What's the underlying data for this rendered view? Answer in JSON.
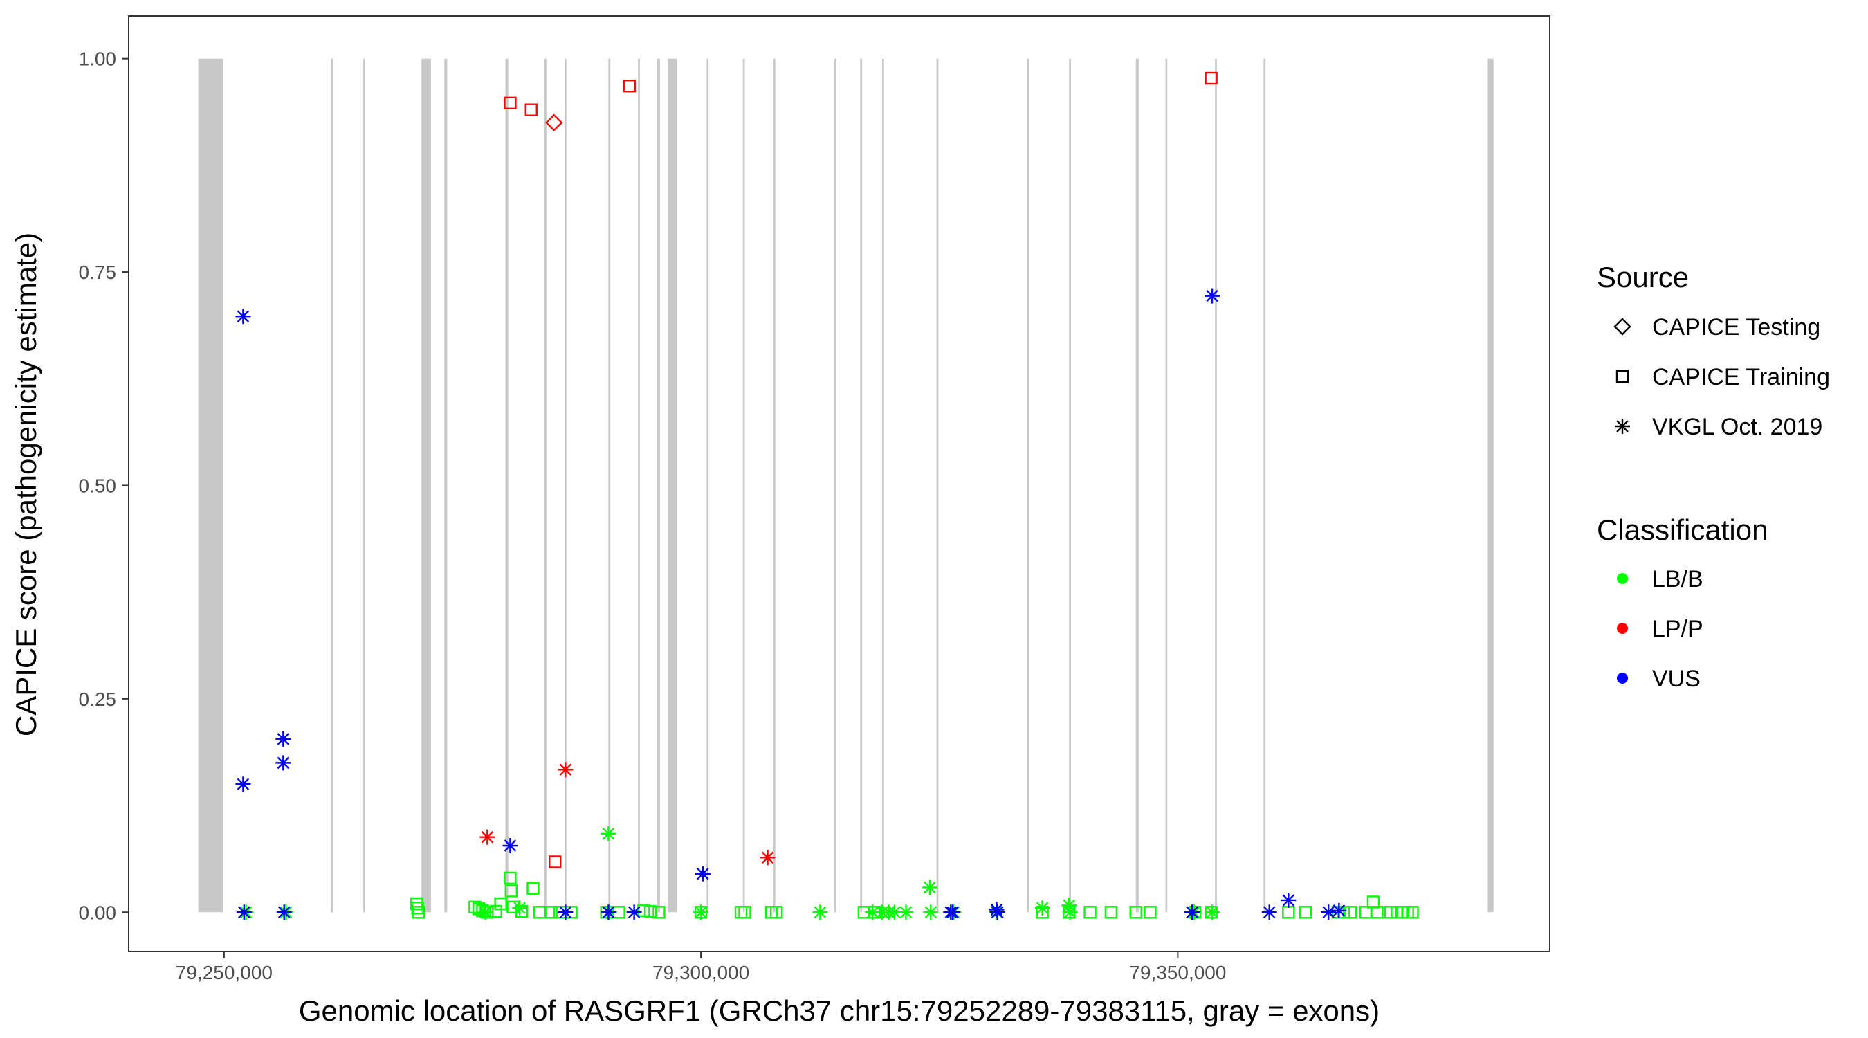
{
  "chart_data": {
    "type": "scatter",
    "title": "",
    "xlabel": "Genomic location of RASGRF1 (GRCh37 chr15:79252289-79383115, gray = exons)",
    "ylabel": "CAPICE score (pathogenicity estimate)",
    "xlim": [
      79240000,
      79389000
    ],
    "ylim": [
      -0.046,
      1.05
    ],
    "x_ticks": [
      79250000,
      79300000,
      79350000
    ],
    "x_tick_labels": [
      "79,250,000",
      "79,300,000",
      "79,350,000"
    ],
    "y_ticks": [
      0.0,
      0.25,
      0.5,
      0.75,
      1.0
    ],
    "y_tick_labels": [
      "0.00",
      "0.25",
      "0.50",
      "0.75",
      "1.00"
    ],
    "grid": false,
    "exon_color": "#c8c8c8",
    "exons": [
      [
        79247300,
        79249900
      ],
      [
        79261200,
        79261400
      ],
      [
        79264600,
        79264800
      ],
      [
        79270700,
        79271700
      ],
      [
        79273100,
        79273400
      ],
      [
        79279500,
        79279800
      ],
      [
        79283600,
        79283800
      ],
      [
        79285700,
        79285900
      ],
      [
        79290300,
        79290500
      ],
      [
        79293400,
        79293600
      ],
      [
        79295400,
        79295700
      ],
      [
        79296500,
        79297500
      ],
      [
        79300600,
        79300800
      ],
      [
        79304400,
        79304600
      ],
      [
        79307600,
        79307800
      ],
      [
        79314000,
        79314200
      ],
      [
        79316700,
        79316900
      ],
      [
        79319000,
        79319200
      ],
      [
        79324700,
        79324900
      ],
      [
        79334200,
        79334400
      ],
      [
        79338600,
        79338800
      ],
      [
        79345600,
        79345900
      ],
      [
        79348700,
        79348900
      ],
      [
        79353900,
        79354100
      ],
      [
        79359000,
        79359200
      ],
      [
        79382500,
        79383100
      ]
    ],
    "legend": {
      "placement": "right",
      "source_title": "Source",
      "source_items": [
        {
          "label": "CAPICE Testing",
          "shape": "diamond"
        },
        {
          "label": "CAPICE Training",
          "shape": "square"
        },
        {
          "label": "VKGL Oct. 2019",
          "shape": "asterisk"
        }
      ],
      "class_title": "Classification",
      "class_items": [
        {
          "label": "LB/B",
          "color": "#00ff00"
        },
        {
          "label": "LP/P",
          "color": "#ff0000"
        },
        {
          "label": "VUS",
          "color": "#0000ff"
        }
      ]
    },
    "series": [
      {
        "source": "CAPICE Testing",
        "shape": "diamond",
        "classification": "LP/P",
        "color": "#ff0000",
        "points": [
          [
            79284600,
            0.925
          ]
        ]
      },
      {
        "source": "CAPICE Training",
        "shape": "square",
        "classification": "LP/P",
        "color": "#ff0000",
        "points": [
          [
            79280000,
            0.948
          ],
          [
            79282200,
            0.94
          ],
          [
            79292500,
            0.968
          ],
          [
            79353500,
            0.977
          ],
          [
            79284700,
            0.059
          ]
        ]
      },
      {
        "source": "CAPICE Training",
        "shape": "square",
        "classification": "LB/B",
        "color": "#00ff00",
        "points": [
          [
            79270200,
            0.01
          ],
          [
            79270300,
            0.005
          ],
          [
            79270400,
            0.0
          ],
          [
            79276300,
            0.006
          ],
          [
            79276700,
            0.004
          ],
          [
            79277100,
            0.002
          ],
          [
            79277600,
            0.0
          ],
          [
            79278500,
            0.001
          ],
          [
            79279000,
            0.01
          ],
          [
            79280000,
            0.04
          ],
          [
            79280100,
            0.025
          ],
          [
            79280300,
            0.006
          ],
          [
            79281200,
            0.001
          ],
          [
            79282400,
            0.028
          ],
          [
            79283100,
            0.0
          ],
          [
            79284300,
            0.0
          ],
          [
            79285200,
            0.0
          ],
          [
            79286400,
            0.0
          ],
          [
            79290100,
            0.0
          ],
          [
            79291400,
            0.0
          ],
          [
            79294000,
            0.002
          ],
          [
            79294700,
            0.001
          ],
          [
            79295600,
            0.0
          ],
          [
            79300000,
            0.0
          ],
          [
            79304200,
            0.0
          ],
          [
            79304600,
            0.0
          ],
          [
            79307400,
            0.0
          ],
          [
            79307900,
            0.0
          ],
          [
            79317100,
            0.0
          ],
          [
            79318200,
            0.0
          ],
          [
            79335800,
            0.0
          ],
          [
            79338600,
            0.0
          ],
          [
            79340800,
            0.0
          ],
          [
            79343000,
            0.0
          ],
          [
            79345600,
            0.0
          ],
          [
            79347100,
            0.0
          ],
          [
            79351800,
            0.0
          ],
          [
            79353500,
            0.0
          ],
          [
            79361600,
            0.0
          ],
          [
            79363400,
            0.0
          ],
          [
            79366800,
            0.0
          ],
          [
            79367400,
            0.0
          ],
          [
            79368100,
            0.0
          ],
          [
            79369700,
            0.0
          ],
          [
            79370500,
            0.012
          ],
          [
            79370900,
            0.0
          ],
          [
            79372300,
            0.0
          ],
          [
            79373000,
            0.0
          ],
          [
            79373600,
            0.0
          ],
          [
            79374100,
            0.0
          ],
          [
            79374600,
            0.0
          ]
        ]
      },
      {
        "source": "VKGL Oct. 2019",
        "shape": "asterisk",
        "classification": "LB/B",
        "color": "#00ff00",
        "points": [
          [
            79252300,
            0.0
          ],
          [
            79256500,
            0.0
          ],
          [
            79277400,
            0.0
          ],
          [
            79281000,
            0.005
          ],
          [
            79290300,
            0.092
          ],
          [
            79290400,
            0.0
          ],
          [
            79300000,
            0.0
          ],
          [
            79312500,
            0.0
          ],
          [
            79318000,
            0.0
          ],
          [
            79319000,
            0.0
          ],
          [
            79319700,
            0.0
          ],
          [
            79320300,
            0.0
          ],
          [
            79321500,
            0.0
          ],
          [
            79324000,
            0.029
          ],
          [
            79324100,
            0.0
          ],
          [
            79326500,
            0.0
          ],
          [
            79331000,
            0.0
          ],
          [
            79335800,
            0.005
          ],
          [
            79338600,
            0.008
          ],
          [
            79338700,
            0.0
          ],
          [
            79351700,
            0.0
          ],
          [
            79353600,
            0.0
          ]
        ]
      },
      {
        "source": "VKGL Oct. 2019",
        "shape": "asterisk",
        "classification": "LP/P",
        "color": "#ff0000",
        "points": [
          [
            79277600,
            0.088
          ],
          [
            79285800,
            0.167
          ],
          [
            79307000,
            0.064
          ]
        ]
      },
      {
        "source": "VKGL Oct. 2019",
        "shape": "asterisk",
        "classification": "VUS",
        "color": "#0000ff",
        "points": [
          [
            79252000,
            0.698
          ],
          [
            79252000,
            0.15
          ],
          [
            79252100,
            0.0
          ],
          [
            79256200,
            0.203
          ],
          [
            79256200,
            0.175
          ],
          [
            79256300,
            0.0
          ],
          [
            79280000,
            0.078
          ],
          [
            79285800,
            0.0
          ],
          [
            79290300,
            0.0
          ],
          [
            79293000,
            0.0
          ],
          [
            79300200,
            0.045
          ],
          [
            79326200,
            0.0
          ],
          [
            79326400,
            0.0
          ],
          [
            79331000,
            0.003
          ],
          [
            79331100,
            0.0
          ],
          [
            79351500,
            0.0
          ],
          [
            79353600,
            0.722
          ],
          [
            79359600,
            0.0
          ],
          [
            79361600,
            0.014
          ],
          [
            79365800,
            0.0
          ],
          [
            79366900,
            0.002
          ]
        ]
      }
    ]
  }
}
